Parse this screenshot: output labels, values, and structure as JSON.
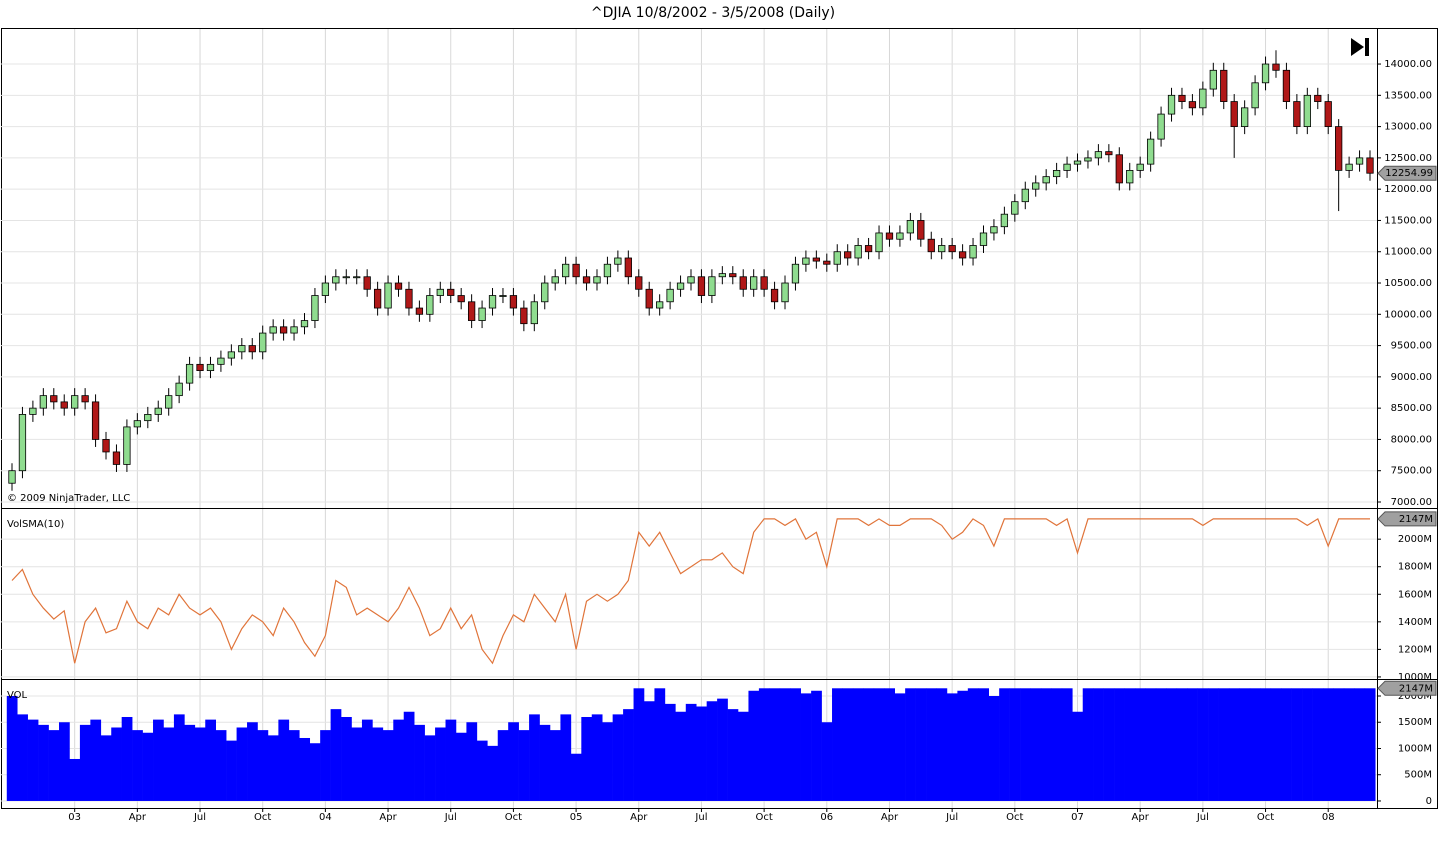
{
  "chart_data": [
    {
      "type": "candlestick",
      "title": "^DJIA  10/8/2002 - 3/5/2008 (Daily)",
      "copyright": "© 2009 NinjaTrader, LLC",
      "up_color": "#8fdc8f",
      "down_color": "#b01818",
      "open": [
        7300,
        7500,
        8400,
        8500,
        8700,
        8600,
        8500,
        8700,
        8600,
        8000,
        7800,
        7600,
        8200,
        8300,
        8400,
        8500,
        8700,
        8900,
        9200,
        9100,
        9200,
        9300,
        9400,
        9500,
        9400,
        9700,
        9800,
        9700,
        9800,
        9900,
        10300,
        10500,
        10600,
        10600,
        10600,
        10400,
        10100,
        10500,
        10400,
        10100,
        10000,
        10300,
        10400,
        10300,
        10200,
        9900,
        10100,
        10300,
        10300,
        10100,
        9850,
        10200,
        10500,
        10600,
        10800,
        10600,
        10500,
        10600,
        10800,
        10900,
        10600,
        10400,
        10100,
        10200,
        10400,
        10500,
        10600,
        10300,
        10600,
        10650,
        10600,
        10400,
        10600,
        10400,
        10200,
        10500,
        10800,
        10900,
        10850,
        10800,
        11000,
        10900,
        11100,
        11000,
        11300,
        11200,
        11300,
        11500,
        11200,
        11000,
        11100,
        11000,
        10900,
        11100,
        11300,
        11400,
        11600,
        11800,
        12000,
        12100,
        12200,
        12300,
        12400,
        12450,
        12500,
        12600,
        12550,
        12100,
        12300,
        12400,
        12800,
        13200,
        13500,
        13400,
        13300,
        13600,
        13900,
        13400,
        13000,
        13300,
        13700,
        14000,
        13900,
        13400,
        13000,
        13500,
        13400,
        13000,
        12300,
        12400,
        12500
      ],
      "high": [
        7620,
        8520,
        8620,
        8820,
        8820,
        8720,
        8820,
        8820,
        8720,
        8120,
        7920,
        8320,
        8420,
        8520,
        8620,
        8820,
        9020,
        9320,
        9320,
        9320,
        9420,
        9520,
        9620,
        9620,
        9820,
        9920,
        9920,
        9920,
        10020,
        10420,
        10620,
        10720,
        10720,
        10720,
        10720,
        10520,
        10620,
        10620,
        10520,
        10220,
        10420,
        10520,
        10520,
        10420,
        10320,
        10220,
        10420,
        10420,
        10420,
        10220,
        10320,
        10620,
        10720,
        10920,
        10920,
        10720,
        10720,
        10920,
        11020,
        11020,
        10720,
        10520,
        10320,
        10520,
        10620,
        10720,
        10720,
        10720,
        10770,
        10770,
        10720,
        10720,
        10720,
        10520,
        10620,
        10920,
        11020,
        11020,
        10970,
        11120,
        11120,
        11220,
        11220,
        11420,
        11420,
        11420,
        11620,
        11620,
        11320,
        11220,
        11220,
        11120,
        11220,
        11420,
        11520,
        11720,
        11920,
        12120,
        12220,
        12320,
        12420,
        12520,
        12570,
        12620,
        12720,
        12720,
        12670,
        12420,
        12520,
        12920,
        13320,
        13620,
        13620,
        13520,
        13720,
        14020,
        14020,
        13520,
        13420,
        13820,
        14120,
        14220,
        14020,
        13520,
        13620,
        13620,
        13520,
        13120,
        12520,
        12620,
        12620
      ],
      "low": [
        7180,
        7380,
        8280,
        8380,
        8480,
        8380,
        8380,
        8480,
        7880,
        7680,
        7480,
        7480,
        8080,
        8180,
        8280,
        8380,
        8580,
        8780,
        8980,
        8980,
        9080,
        9180,
        9280,
        9280,
        9280,
        9580,
        9580,
        9580,
        9680,
        9780,
        10180,
        10380,
        10480,
        10480,
        10280,
        9980,
        9980,
        10280,
        9980,
        9880,
        9880,
        10180,
        10180,
        10080,
        9780,
        9780,
        9980,
        10180,
        9980,
        9730,
        9730,
        10080,
        10380,
        10480,
        10480,
        10380,
        10380,
        10480,
        10680,
        10480,
        10280,
        9980,
        9980,
        10080,
        10280,
        10380,
        10180,
        10180,
        10480,
        10480,
        10280,
        10280,
        10280,
        10080,
        10080,
        10380,
        10680,
        10730,
        10680,
        10680,
        10780,
        10780,
        10880,
        10880,
        11080,
        11080,
        11180,
        11080,
        10880,
        10880,
        10880,
        10780,
        10780,
        10980,
        11180,
        11280,
        11480,
        11680,
        11880,
        11980,
        12080,
        12180,
        12280,
        12330,
        12380,
        12430,
        11980,
        11980,
        12180,
        12280,
        12680,
        13080,
        13280,
        13180,
        13180,
        13480,
        13280,
        12500,
        12880,
        13180,
        13580,
        13780,
        13280,
        12880,
        12880,
        13280,
        12880,
        11650,
        12180,
        12280,
        12135
      ],
      "close": [
        7500,
        8400,
        8500,
        8700,
        8600,
        8500,
        8700,
        8600,
        8000,
        7800,
        7600,
        8200,
        8300,
        8400,
        8500,
        8700,
        8900,
        9200,
        9100,
        9200,
        9300,
        9400,
        9500,
        9400,
        9700,
        9800,
        9700,
        9800,
        9900,
        10300,
        10500,
        10600,
        10600,
        10600,
        10400,
        10100,
        10500,
        10400,
        10100,
        10000,
        10300,
        10400,
        10300,
        10200,
        9900,
        10100,
        10300,
        10300,
        10100,
        9850,
        10200,
        10500,
        10600,
        10800,
        10600,
        10500,
        10600,
        10800,
        10900,
        10600,
        10400,
        10100,
        10200,
        10400,
        10500,
        10600,
        10300,
        10600,
        10650,
        10600,
        10400,
        10600,
        10400,
        10200,
        10500,
        10800,
        10900,
        10850,
        10800,
        11000,
        10900,
        11100,
        11000,
        11300,
        11200,
        11300,
        11500,
        11200,
        11000,
        11100,
        11000,
        10900,
        11100,
        11300,
        11400,
        11600,
        11800,
        12000,
        12100,
        12200,
        12300,
        12400,
        12450,
        12500,
        12600,
        12550,
        12100,
        12300,
        12400,
        12800,
        13200,
        13500,
        13400,
        13300,
        13600,
        13900,
        13400,
        13000,
        13300,
        13700,
        14000,
        13900,
        13400,
        13000,
        13500,
        13400,
        13000,
        12300,
        12400,
        12500,
        12254.99
      ],
      "last_value_label": "12254.99",
      "ylim": [
        6904,
        14560
      ],
      "yticks": [
        {
          "value": 7000,
          "label": "7000.00"
        },
        {
          "value": 7500,
          "label": "7500.00"
        },
        {
          "value": 8000,
          "label": "8000.00"
        },
        {
          "value": 8500,
          "label": "8500.00"
        },
        {
          "value": 9000,
          "label": "9000.00"
        },
        {
          "value": 9500,
          "label": "9500.00"
        },
        {
          "value": 10000,
          "label": "10000.00"
        },
        {
          "value": 10500,
          "label": "10500.00"
        },
        {
          "value": 11000,
          "label": "11000.00"
        },
        {
          "value": 11500,
          "label": "11500.00"
        },
        {
          "value": 12000,
          "label": "12000.00"
        },
        {
          "value": 12500,
          "label": "12500.00"
        },
        {
          "value": 13000,
          "label": "13000.00"
        },
        {
          "value": 13500,
          "label": "13500.00"
        },
        {
          "value": 14000,
          "label": "14000.00"
        }
      ]
    },
    {
      "type": "line",
      "title": "VolSMA(10)",
      "color": "#e0743a",
      "values": [
        1700,
        1780,
        1600,
        1500,
        1420,
        1480,
        1100,
        1400,
        1500,
        1320,
        1350,
        1550,
        1400,
        1350,
        1500,
        1450,
        1600,
        1500,
        1450,
        1500,
        1400,
        1200,
        1350,
        1450,
        1400,
        1300,
        1500,
        1400,
        1250,
        1150,
        1300,
        1700,
        1650,
        1450,
        1500,
        1450,
        1400,
        1500,
        1650,
        1500,
        1300,
        1350,
        1500,
        1350,
        1450,
        1200,
        1100,
        1300,
        1450,
        1400,
        1600,
        1500,
        1400,
        1600,
        1200,
        1550,
        1600,
        1550,
        1600,
        1700,
        2050,
        1950,
        2050,
        1900,
        1750,
        1800,
        1850,
        1850,
        1900,
        1800,
        1750,
        2050,
        2147,
        2147,
        2100,
        2147,
        2000,
        2050,
        1800,
        2147,
        2147,
        2147,
        2100,
        2147,
        2100,
        2100,
        2147,
        2147,
        2147,
        2100,
        2000,
        2050,
        2147,
        2100,
        1950,
        2147,
        2147,
        2147,
        2147,
        2147,
        2100,
        2147,
        1900,
        2147,
        2147,
        2147,
        2147,
        2147,
        2147,
        2147,
        2147,
        2147,
        2147,
        2147,
        2100,
        2147,
        2147,
        2147,
        2147,
        2147,
        2147,
        2147,
        2147,
        2147,
        2100,
        2147,
        1950,
        2147,
        2147,
        2147,
        2147
      ],
      "last_value_label": "2147M",
      "ylim": [
        985,
        2219
      ],
      "yticks": [
        {
          "value": 1000,
          "label": "1000M"
        },
        {
          "value": 1200,
          "label": "1200M"
        },
        {
          "value": 1400,
          "label": "1400M"
        },
        {
          "value": 1600,
          "label": "1600M"
        },
        {
          "value": 1800,
          "label": "1800M"
        },
        {
          "value": 2000,
          "label": "2000M"
        }
      ]
    },
    {
      "type": "bar",
      "title": "VOL",
      "color": "#0000ff",
      "values": [
        2000,
        1650,
        1550,
        1450,
        1350,
        1500,
        800,
        1450,
        1550,
        1250,
        1400,
        1600,
        1350,
        1300,
        1550,
        1400,
        1650,
        1450,
        1400,
        1550,
        1350,
        1150,
        1400,
        1500,
        1350,
        1250,
        1550,
        1350,
        1200,
        1100,
        1350,
        1750,
        1600,
        1400,
        1550,
        1400,
        1350,
        1550,
        1700,
        1450,
        1250,
        1400,
        1550,
        1300,
        1500,
        1150,
        1050,
        1350,
        1500,
        1350,
        1650,
        1450,
        1350,
        1650,
        900,
        1600,
        1650,
        1500,
        1650,
        1750,
        2147,
        1900,
        2147,
        1850,
        1700,
        1850,
        1800,
        1900,
        1950,
        1750,
        1700,
        2100,
        2147,
        2147,
        2147,
        2147,
        2050,
        2100,
        1500,
        2147,
        2147,
        2147,
        2147,
        2147,
        2147,
        2050,
        2147,
        2147,
        2147,
        2147,
        2050,
        2100,
        2147,
        2147,
        2000,
        2147,
        2147,
        2147,
        2147,
        2147,
        2147,
        2147,
        1700,
        2147,
        2147,
        2147,
        2147,
        2147,
        2147,
        2147,
        2147,
        2147,
        2147,
        2147,
        2147,
        2147,
        2147,
        2147,
        2147,
        2147,
        2147,
        2147,
        2147,
        2147,
        2147,
        2147,
        2147,
        2147,
        2147,
        2147,
        2147
      ],
      "last_value_label": "2147M",
      "ylim": [
        -134,
        2305
      ],
      "yticks": [
        0,
        {
          "value": 500,
          "label": "500M"
        },
        {
          "value": 1000,
          "label": "1000M"
        },
        {
          "value": 1500,
          "label": "1500M"
        },
        {
          "value": 2000,
          "label": "2000M"
        }
      ],
      "xlim": [
        0,
        130
      ],
      "xticks": [
        {
          "value": 6,
          "label": "03"
        },
        {
          "value": 12,
          "label": "Apr"
        },
        {
          "value": 18,
          "label": "Jul"
        },
        {
          "value": 24,
          "label": "Oct"
        },
        {
          "value": 30,
          "label": "04"
        },
        {
          "value": 36,
          "label": "Apr"
        },
        {
          "value": 42,
          "label": "Jul"
        },
        {
          "value": 48,
          "label": "Oct"
        },
        {
          "value": 54,
          "label": "05"
        },
        {
          "value": 60,
          "label": "Apr"
        },
        {
          "value": 66,
          "label": "Jul"
        },
        {
          "value": 72,
          "label": "Oct"
        },
        {
          "value": 78,
          "label": "06"
        },
        {
          "value": 84,
          "label": "Apr"
        },
        {
          "value": 90,
          "label": "Jul"
        },
        {
          "value": 96,
          "label": "Oct"
        },
        {
          "value": 102,
          "label": "07"
        },
        {
          "value": 108,
          "label": "Apr"
        },
        {
          "value": 114,
          "label": "Jul"
        },
        {
          "value": 120,
          "label": "Oct"
        },
        {
          "value": 126,
          "label": "08"
        }
      ]
    }
  ]
}
